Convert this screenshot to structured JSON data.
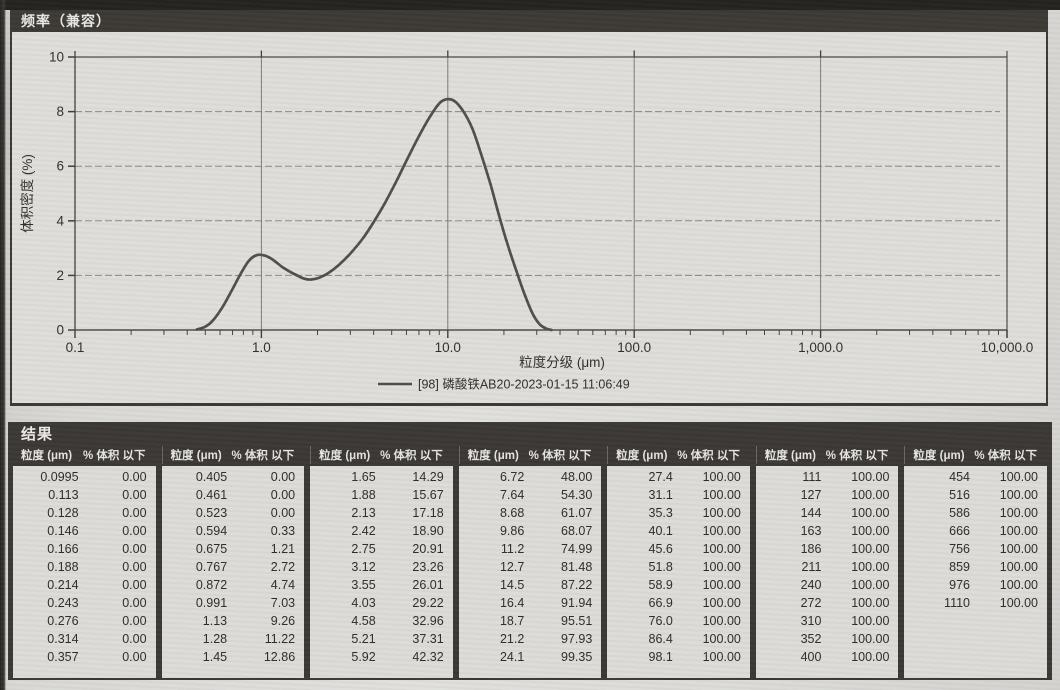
{
  "chart_panel": {
    "title": "频率（兼容）"
  },
  "chart_data": {
    "type": "line",
    "title": "频率（兼容）",
    "xlabel": "粒度分级 (μm)",
    "ylabel": "体积密度 (%)",
    "x_scale": "log",
    "xlim": [
      0.1,
      10000
    ],
    "ylim": [
      0,
      10
    ],
    "grid": true,
    "legend_position": "bottom-center",
    "y_ticks": [
      0,
      2,
      4,
      6,
      8,
      10
    ],
    "x_ticks": [
      {
        "value": 0.1,
        "label": "0.1"
      },
      {
        "value": 1,
        "label": "1.0"
      },
      {
        "value": 10,
        "label": "10.0"
      },
      {
        "value": 100,
        "label": "100.0"
      },
      {
        "value": 1000,
        "label": "1,000.0"
      },
      {
        "value": 10000,
        "label": "10,000.0"
      }
    ],
    "series": [
      {
        "name": "[98] 磷酸铁AB20-2023-01-15 11:06:49",
        "color": "#4f4c48",
        "points": [
          [
            0.45,
            0.02
          ],
          [
            0.5,
            0.12
          ],
          [
            0.55,
            0.35
          ],
          [
            0.62,
            0.85
          ],
          [
            0.7,
            1.5
          ],
          [
            0.78,
            2.1
          ],
          [
            0.86,
            2.55
          ],
          [
            0.95,
            2.75
          ],
          [
            1.05,
            2.72
          ],
          [
            1.15,
            2.58
          ],
          [
            1.3,
            2.3
          ],
          [
            1.5,
            2.05
          ],
          [
            1.7,
            1.88
          ],
          [
            1.85,
            1.85
          ],
          [
            2.05,
            1.92
          ],
          [
            2.3,
            2.1
          ],
          [
            2.6,
            2.38
          ],
          [
            3.0,
            2.8
          ],
          [
            3.5,
            3.35
          ],
          [
            4.0,
            3.95
          ],
          [
            4.6,
            4.65
          ],
          [
            5.3,
            5.45
          ],
          [
            6.1,
            6.3
          ],
          [
            7.0,
            7.1
          ],
          [
            8.0,
            7.8
          ],
          [
            9.0,
            8.3
          ],
          [
            9.8,
            8.45
          ],
          [
            10.8,
            8.4
          ],
          [
            12.0,
            8.05
          ],
          [
            13.5,
            7.4
          ],
          [
            15.0,
            6.5
          ],
          [
            17.0,
            5.3
          ],
          [
            19.0,
            4.1
          ],
          [
            21.0,
            3.1
          ],
          [
            23.5,
            2.1
          ],
          [
            26.0,
            1.25
          ],
          [
            28.5,
            0.6
          ],
          [
            31.0,
            0.22
          ],
          [
            33.5,
            0.06
          ],
          [
            36.0,
            0.0
          ]
        ]
      }
    ]
  },
  "results": {
    "title": "结果",
    "col_headers": {
      "size": "粒度 (μm)",
      "volume": "% 体积 以下"
    },
    "groups": [
      {
        "rows": [
          [
            "0.0995",
            "0.00"
          ],
          [
            "0.113",
            "0.00"
          ],
          [
            "0.128",
            "0.00"
          ],
          [
            "0.146",
            "0.00"
          ],
          [
            "0.166",
            "0.00"
          ],
          [
            "0.188",
            "0.00"
          ],
          [
            "0.214",
            "0.00"
          ],
          [
            "0.243",
            "0.00"
          ],
          [
            "0.276",
            "0.00"
          ],
          [
            "0.314",
            "0.00"
          ],
          [
            "0.357",
            "0.00"
          ]
        ]
      },
      {
        "rows": [
          [
            "0.405",
            "0.00"
          ],
          [
            "0.461",
            "0.00"
          ],
          [
            "0.523",
            "0.00"
          ],
          [
            "0.594",
            "0.33"
          ],
          [
            "0.675",
            "1.21"
          ],
          [
            "0.767",
            "2.72"
          ],
          [
            "0.872",
            "4.74"
          ],
          [
            "0.991",
            "7.03"
          ],
          [
            "1.13",
            "9.26"
          ],
          [
            "1.28",
            "11.22"
          ],
          [
            "1.45",
            "12.86"
          ]
        ]
      },
      {
        "rows": [
          [
            "1.65",
            "14.29"
          ],
          [
            "1.88",
            "15.67"
          ],
          [
            "2.13",
            "17.18"
          ],
          [
            "2.42",
            "18.90"
          ],
          [
            "2.75",
            "20.91"
          ],
          [
            "3.12",
            "23.26"
          ],
          [
            "3.55",
            "26.01"
          ],
          [
            "4.03",
            "29.22"
          ],
          [
            "4.58",
            "32.96"
          ],
          [
            "5.21",
            "37.31"
          ],
          [
            "5.92",
            "42.32"
          ]
        ]
      },
      {
        "rows": [
          [
            "6.72",
            "48.00"
          ],
          [
            "7.64",
            "54.30"
          ],
          [
            "8.68",
            "61.07"
          ],
          [
            "9.86",
            "68.07"
          ],
          [
            "11.2",
            "74.99"
          ],
          [
            "12.7",
            "81.48"
          ],
          [
            "14.5",
            "87.22"
          ],
          [
            "16.4",
            "91.94"
          ],
          [
            "18.7",
            "95.51"
          ],
          [
            "21.2",
            "97.93"
          ],
          [
            "24.1",
            "99.35"
          ]
        ]
      },
      {
        "rows": [
          [
            "27.4",
            "100.00"
          ],
          [
            "31.1",
            "100.00"
          ],
          [
            "35.3",
            "100.00"
          ],
          [
            "40.1",
            "100.00"
          ],
          [
            "45.6",
            "100.00"
          ],
          [
            "51.8",
            "100.00"
          ],
          [
            "58.9",
            "100.00"
          ],
          [
            "66.9",
            "100.00"
          ],
          [
            "76.0",
            "100.00"
          ],
          [
            "86.4",
            "100.00"
          ],
          [
            "98.1",
            "100.00"
          ]
        ]
      },
      {
        "rows": [
          [
            "111",
            "100.00"
          ],
          [
            "127",
            "100.00"
          ],
          [
            "144",
            "100.00"
          ],
          [
            "163",
            "100.00"
          ],
          [
            "186",
            "100.00"
          ],
          [
            "211",
            "100.00"
          ],
          [
            "240",
            "100.00"
          ],
          [
            "272",
            "100.00"
          ],
          [
            "310",
            "100.00"
          ],
          [
            "352",
            "100.00"
          ],
          [
            "400",
            "100.00"
          ]
        ]
      },
      {
        "rows": [
          [
            "454",
            "100.00"
          ],
          [
            "516",
            "100.00"
          ],
          [
            "586",
            "100.00"
          ],
          [
            "666",
            "100.00"
          ],
          [
            "756",
            "100.00"
          ],
          [
            "859",
            "100.00"
          ],
          [
            "976",
            "100.00"
          ],
          [
            "1110",
            "100.00"
          ]
        ]
      }
    ]
  }
}
